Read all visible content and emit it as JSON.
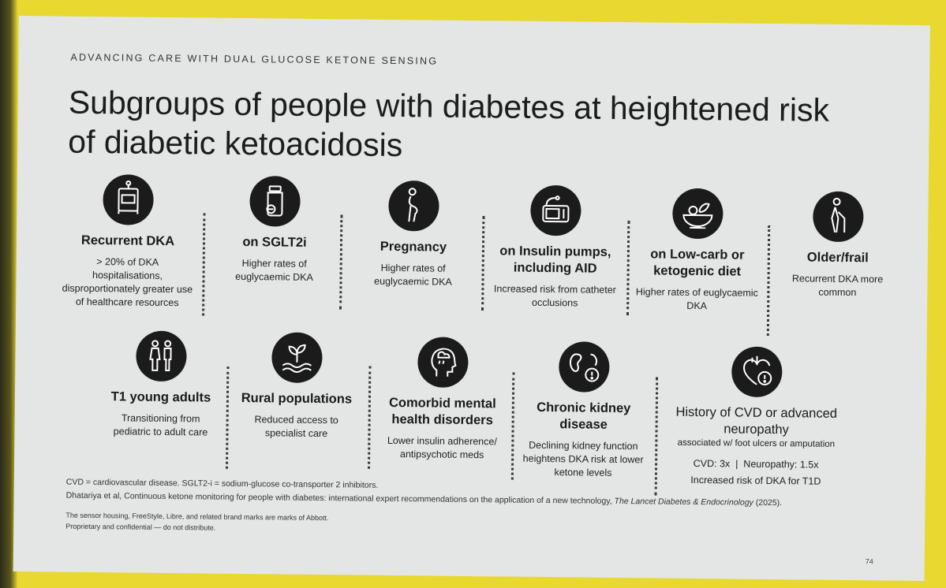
{
  "kicker": "ADVANCING CARE WITH DUAL GLUCOSE KETONE SENSING",
  "title": "Subgroups of people with diabetes at heightened risk of diabetic ketoacidosis",
  "groups": [
    {
      "label": "Recurrent DKA",
      "desc": "> 20% of DKA hospitalisations, disproportionately greater use of healthcare resources",
      "icon": "hospital-bed-icon"
    },
    {
      "label": "on SGLT2i",
      "desc": "Higher rates of euglycaemic DKA",
      "icon": "pill-bottle-icon"
    },
    {
      "label": "Pregnancy",
      "desc": "Higher rates of euglycaemic DKA",
      "icon": "pregnant-person-icon"
    },
    {
      "label": "on Insulin pumps, including AID",
      "desc": "Increased risk from catheter occlusions",
      "icon": "insulin-pump-icon"
    },
    {
      "label": "on Low-carb or ketogenic diet",
      "desc": "Higher rates of euglycaemic DKA",
      "icon": "salad-bowl-icon"
    },
    {
      "label": "Older/frail",
      "desc": "Recurrent DKA more common",
      "icon": "elderly-person-icon"
    },
    {
      "label": "T1 young adults",
      "desc": "Transitioning from pediatric to adult care",
      "icon": "young-adults-icon"
    },
    {
      "label": "Rural populations",
      "desc": "Reduced access to specialist care",
      "icon": "sprout-icon"
    },
    {
      "label": "Comorbid mental health disorders",
      "desc": "Lower insulin adherence/ antipsychotic meds",
      "icon": "head-cloud-icon"
    },
    {
      "label": "Chronic kidney disease",
      "desc": "Declining kidney function heightens DKA risk at lower ketone levels",
      "icon": "kidney-warning-icon"
    },
    {
      "label": "History of CVD or advanced neuropathy",
      "assoc": "associated w/ foot ulcers or amputation",
      "stats": "CVD: 3x  |  Neuropathy: 1.5x",
      "desc": "Increased risk of DKA for T1D",
      "icon": "heart-warning-icon"
    }
  ],
  "footnotes": {
    "abbrev": "CVD = cardiovascular disease. SGLT2-i = sodium-glucose co-transporter 2 inhibitors.",
    "ref_main": "Dhatariya et al, Continuous ketone monitoring for people with diabetes: international expert recommendations on the application of a new technology, ",
    "ref_journal": "The Lancet Diabetes & Endocrinology",
    "ref_year": " (2025).",
    "trademark": "The sensor housing, FreeStyle, Libre, and related brand marks are marks of Abbott.",
    "confidential": "Proprietary and confidential — do not distribute."
  },
  "page_number": "74"
}
